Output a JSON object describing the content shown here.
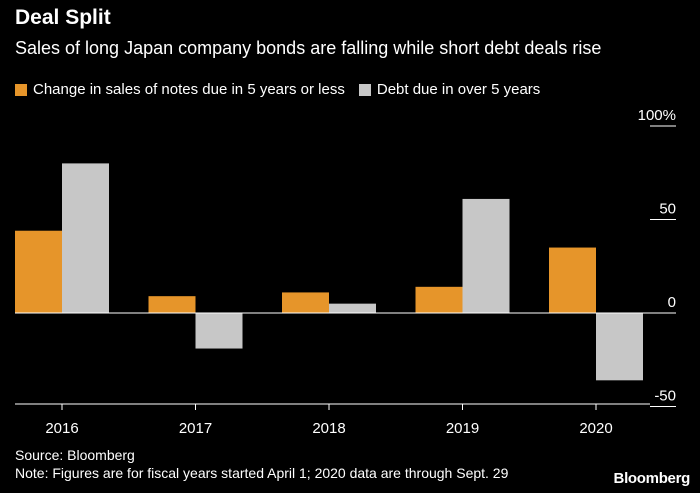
{
  "title": "Deal Split",
  "subtitle": "Sales of long Japan company bonds are falling while short debt deals rise",
  "source": "Source: Bloomberg",
  "note": "Note: Figures are for fiscal years started April 1; 2020 data are through Sept. 29",
  "logo": "Bloomberg",
  "colors": {
    "short": "#e6952a",
    "long": "#c7c7c7",
    "background": "#000000",
    "text": "#ffffff"
  },
  "chart_data": {
    "type": "bar",
    "title": "Deal Split",
    "xlabel": "",
    "ylabel": "",
    "categories": [
      "2016",
      "2017",
      "2018",
      "2019",
      "2020"
    ],
    "series": [
      {
        "name": "Change in sales of notes due in 5 years or less",
        "values": [
          44,
          9,
          11,
          14,
          35
        ]
      },
      {
        "name": "Debt due in over 5 years",
        "values": [
          80,
          -19,
          5,
          61,
          -36
        ]
      }
    ],
    "ylim": [
      -50,
      100
    ],
    "yticks": [
      {
        "value": 100,
        "label": "100%"
      },
      {
        "value": 50,
        "label": "50"
      },
      {
        "value": 0,
        "label": "0"
      },
      {
        "value": -50,
        "label": "-50"
      }
    ],
    "legend": "top-left"
  }
}
